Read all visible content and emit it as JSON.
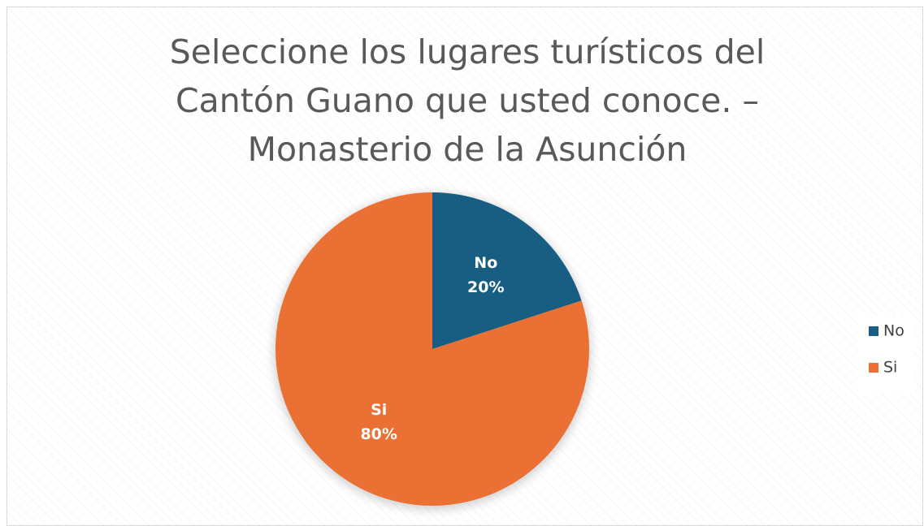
{
  "chart_data": {
    "type": "pie",
    "title": "Seleccione los lugares turísticos del Cantón Guano que usted conoce. – Monasterio de la Asunción",
    "categories": [
      "No",
      "Si"
    ],
    "values": [
      20,
      80
    ],
    "value_labels": [
      "20%",
      "80%"
    ],
    "colors": [
      "#175e82",
      "#ea7133"
    ],
    "legend": "right"
  }
}
